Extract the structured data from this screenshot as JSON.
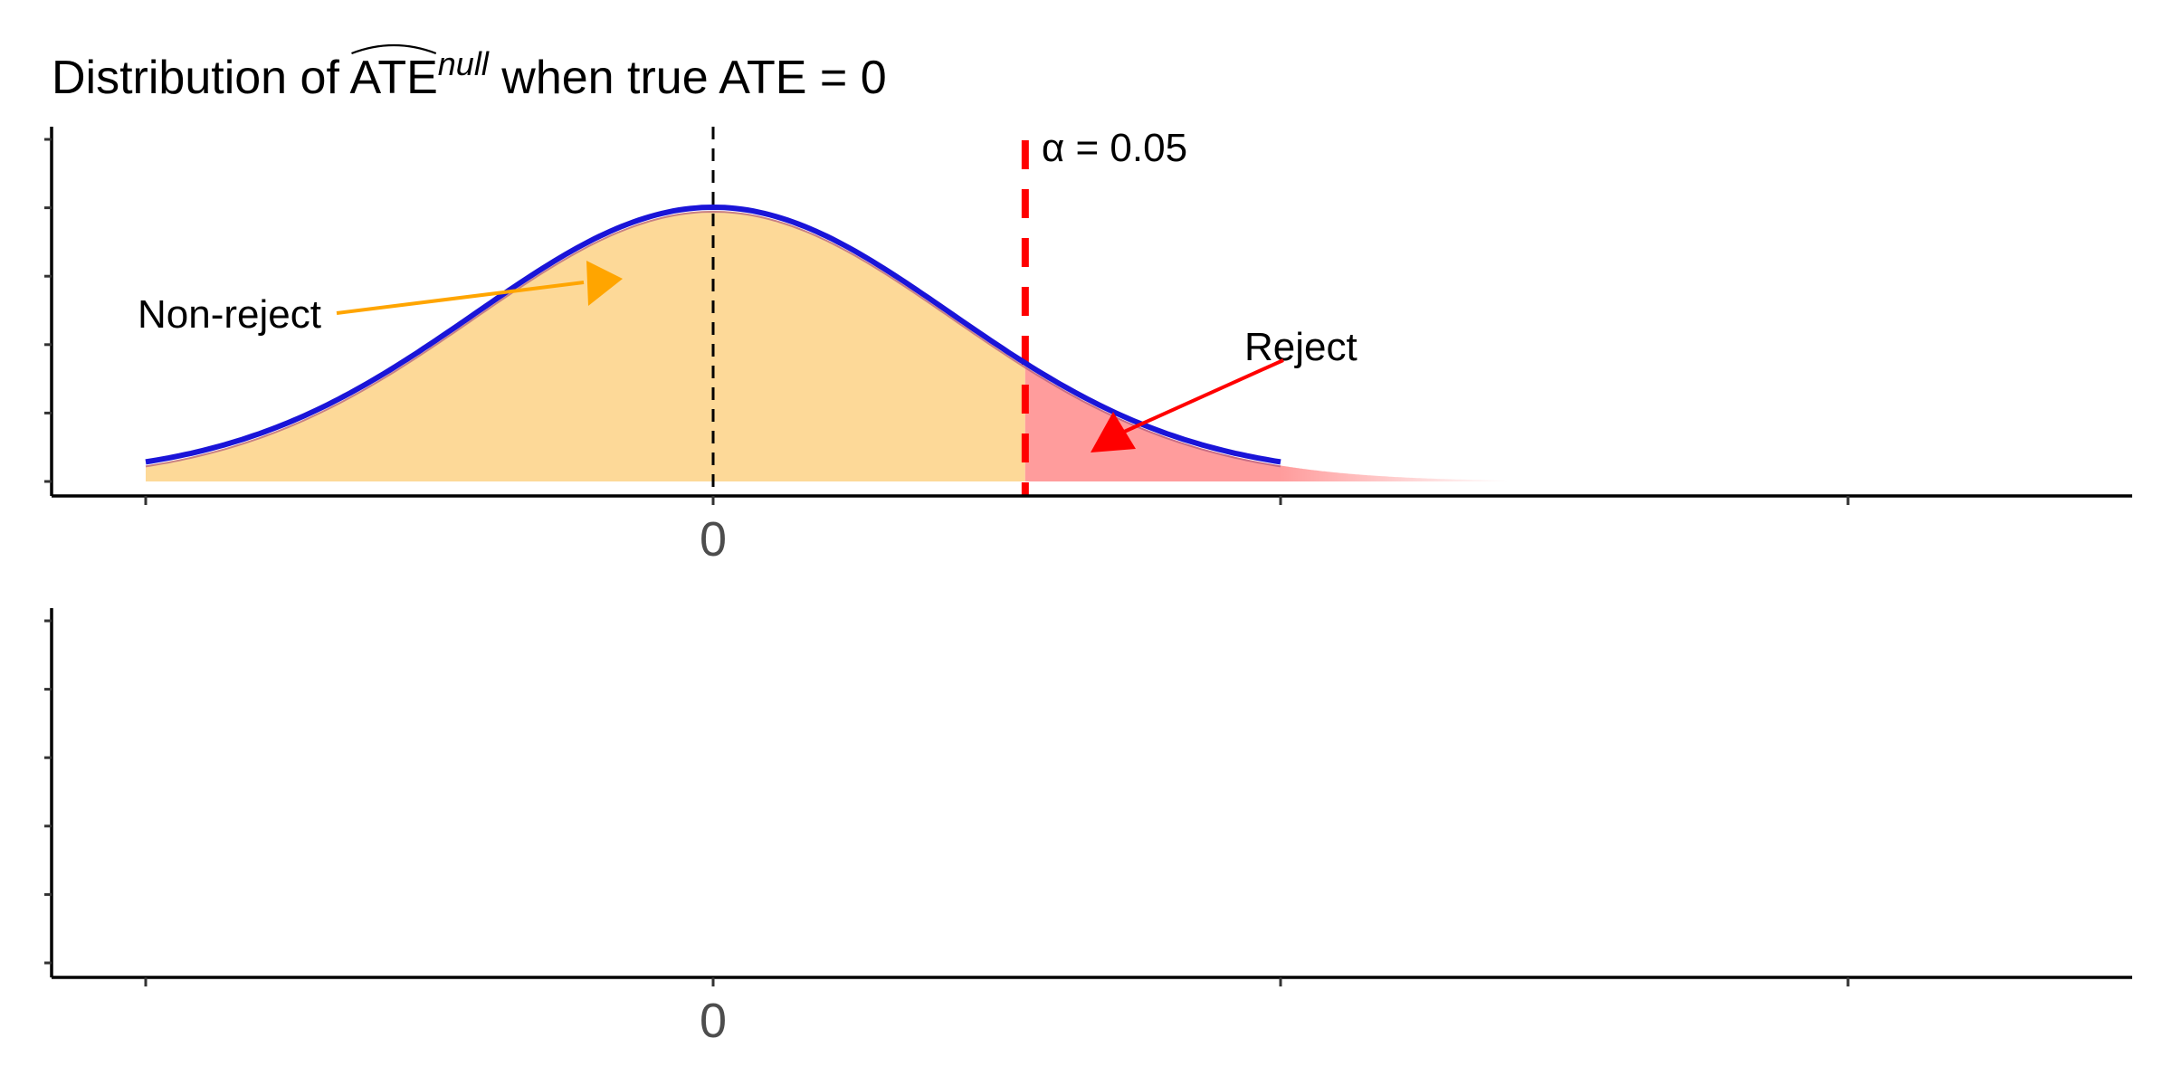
{
  "chart_data": [
    {
      "type": "area",
      "title_prefix": "Distribution of ",
      "title_estimator": "ATE",
      "title_superscript": "null",
      "title_suffix": " when true ATE = 0",
      "distribution": "normal",
      "mean": 0,
      "sd": 1,
      "x_range": [
        -1.0,
        2.5
      ],
      "curve_x_range": [
        -1.0,
        1.0
      ],
      "x_ticks": [
        -1,
        0,
        1,
        2
      ],
      "x_tick_labels": [
        "",
        "0",
        "",
        ""
      ],
      "y_ticks": 6,
      "critical_value": 0.55,
      "critical_label": "α = 0.05",
      "regions": [
        {
          "name": "Non-reject",
          "from": -1.0,
          "to": 0.55,
          "color": "#fdd998"
        },
        {
          "name": "Reject",
          "from": 0.55,
          "to": 1.4,
          "color": "#ff9c9c"
        }
      ],
      "curve_color": "#1a14d8",
      "critical_line_color": "#ff0000",
      "null_line_color": "#000000",
      "annotations": [
        {
          "text": "Non-reject",
          "color": "#ffa500"
        },
        {
          "text": "Reject",
          "color": "#ff0000"
        }
      ]
    },
    {
      "type": "area",
      "x_range": [
        -1.0,
        2.5
      ],
      "x_ticks": [
        -1,
        0,
        1,
        2
      ],
      "x_tick_labels": [
        "",
        "0",
        "",
        ""
      ],
      "y_ticks": 6
    }
  ]
}
